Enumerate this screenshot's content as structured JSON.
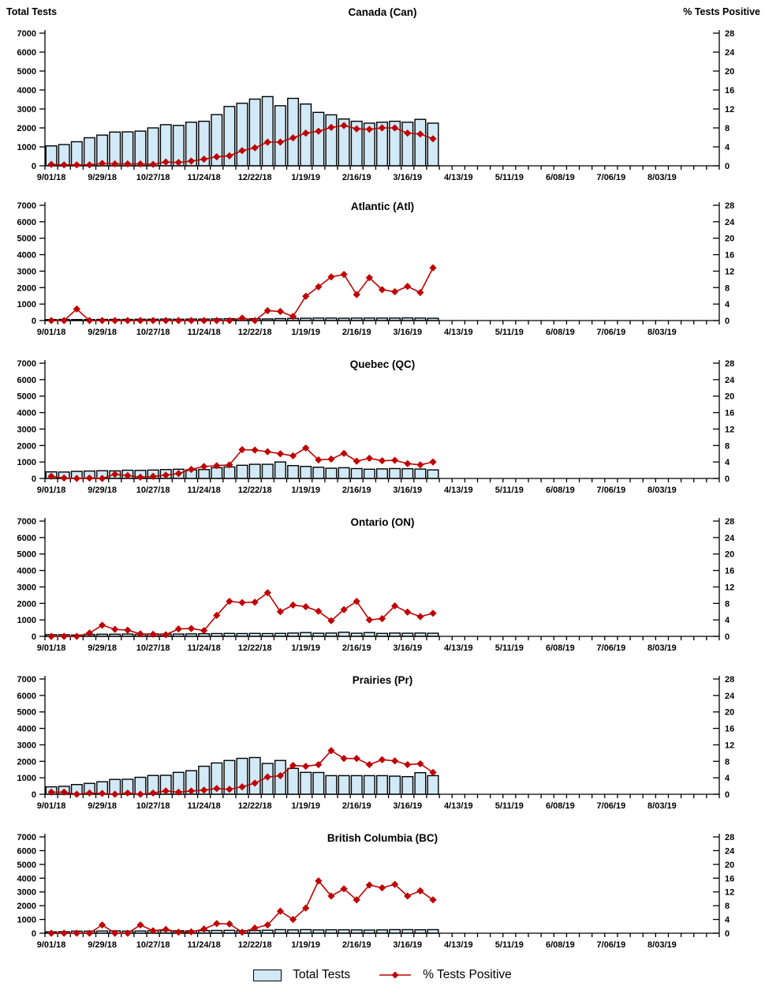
{
  "chart_data": {
    "type": "bar",
    "subtype": "combo-bar-line-small-multiples",
    "left_axis": {
      "label": "Total Tests",
      "min": 0,
      "max": 7000,
      "tick_step": 1000
    },
    "right_axis": {
      "label": "% Tests Positive",
      "min": 0,
      "max": 28,
      "tick_step": 4
    },
    "x_tick_labels": [
      "9/01/18",
      "9/29/18",
      "10/27/18",
      "11/24/18",
      "12/22/18",
      "1/19/19",
      "2/16/19",
      "3/16/19",
      "4/13/19",
      "5/11/19",
      "6/08/19",
      "7/06/19",
      "8/03/19"
    ],
    "weeks_total_on_axis": 53,
    "label_every_n_weeks": 4,
    "week_dates_with_data": [
      "9/01/18",
      "9/08/18",
      "9/15/18",
      "9/22/18",
      "9/29/18",
      "10/06/18",
      "10/13/18",
      "10/20/18",
      "10/27/18",
      "11/03/18",
      "11/10/18",
      "11/17/18",
      "11/24/18",
      "12/01/18",
      "12/08/18",
      "12/15/18",
      "12/22/18",
      "12/29/18",
      "1/05/19",
      "1/12/19",
      "1/19/19",
      "1/26/19",
      "2/02/19",
      "2/09/19",
      "2/16/19",
      "2/23/19",
      "3/02/19",
      "3/09/19",
      "3/16/19",
      "3/23/19",
      "3/30/19"
    ],
    "colors": {
      "bar_fill": "#D2E9F7",
      "bar_border": "#000000",
      "line": "#C00000",
      "text": "#000000"
    },
    "legend": [
      {
        "label": "Total Tests",
        "marker": "bar-swatch"
      },
      {
        "label": "% Tests Positive",
        "marker": "line-diamond"
      }
    ],
    "panels": [
      {
        "title": "Canada (Can)",
        "total_tests": [
          1050,
          1120,
          1270,
          1480,
          1620,
          1780,
          1790,
          1830,
          2000,
          2170,
          2130,
          2300,
          2350,
          2700,
          3130,
          3300,
          3520,
          3650,
          3170,
          3560,
          3260,
          2820,
          2690,
          2470,
          2350,
          2250,
          2300,
          2350,
          2300,
          2450,
          2250
        ],
        "pct_positive": [
          0.3,
          0.2,
          0.2,
          0.2,
          0.5,
          0.4,
          0.4,
          0.4,
          0.3,
          0.8,
          0.7,
          1.0,
          1.4,
          1.9,
          2.1,
          3.2,
          3.8,
          5.0,
          5.0,
          5.9,
          6.9,
          7.3,
          8.1,
          8.5,
          7.8,
          7.7,
          8.0,
          8.0,
          6.9,
          6.7,
          5.7
        ]
      },
      {
        "title": "Atlantic (Atl)",
        "total_tests": [
          60,
          70,
          60,
          60,
          70,
          70,
          70,
          80,
          80,
          90,
          80,
          90,
          90,
          100,
          110,
          100,
          110,
          100,
          120,
          130,
          140,
          150,
          150,
          140,
          150,
          150,
          150,
          150,
          160,
          150,
          140
        ],
        "pct_positive": [
          0,
          0,
          2.8,
          0,
          0,
          0,
          0,
          0,
          0,
          0,
          0,
          0,
          0,
          0,
          0,
          0.6,
          0,
          2.4,
          2.2,
          1.0,
          5.9,
          8.2,
          10.6,
          11.2,
          6.3,
          10.4,
          7.5,
          7.0,
          8.3,
          6.8,
          12.8
        ]
      },
      {
        "title": "Quebec (QC)",
        "total_tests": [
          400,
          390,
          430,
          450,
          470,
          460,
          500,
          490,
          510,
          540,
          560,
          520,
          540,
          650,
          700,
          800,
          860,
          860,
          1000,
          780,
          730,
          680,
          620,
          650,
          600,
          560,
          580,
          600,
          590,
          570,
          520
        ],
        "pct_positive": [
          0.5,
          0.1,
          0,
          0.1,
          0,
          1.0,
          0.7,
          0.3,
          0.5,
          0.8,
          1.2,
          2.2,
          2.9,
          3.1,
          3.3,
          7.0,
          6.9,
          6.5,
          6.0,
          5.5,
          7.4,
          4.5,
          4.7,
          6.1,
          4.2,
          4.9,
          4.3,
          4.4,
          3.6,
          3.3,
          4.0
        ]
      },
      {
        "title": "Ontario (ON)",
        "total_tests": [
          100,
          100,
          80,
          110,
          130,
          130,
          140,
          120,
          150,
          140,
          140,
          150,
          160,
          170,
          180,
          170,
          180,
          170,
          180,
          200,
          230,
          190,
          200,
          250,
          190,
          230,
          180,
          200,
          190,
          200,
          190
        ],
        "pct_positive": [
          0,
          0,
          0,
          0.8,
          2.7,
          1.7,
          1.5,
          0.6,
          0.5,
          0.4,
          1.8,
          1.9,
          1.4,
          5.1,
          8.5,
          8.2,
          8.3,
          10.6,
          6.0,
          7.6,
          7.2,
          6.1,
          3.8,
          6.5,
          8.5,
          4.0,
          4.3,
          7.4,
          5.9,
          4.8,
          5.6
        ]
      },
      {
        "title": "Prairies (Pr)",
        "total_tests": [
          450,
          480,
          590,
          660,
          760,
          900,
          910,
          1030,
          1140,
          1150,
          1330,
          1430,
          1700,
          1900,
          2050,
          2180,
          2230,
          1870,
          2050,
          1570,
          1330,
          1320,
          1130,
          1130,
          1130,
          1130,
          1130,
          1100,
          1070,
          1310,
          1130
        ],
        "pct_positive": [
          0.5,
          0.5,
          0,
          0.3,
          0.2,
          0,
          0.3,
          0,
          0.3,
          0.8,
          0.5,
          0.8,
          1.0,
          1.4,
          1.2,
          1.8,
          2.7,
          4.2,
          4.5,
          7.0,
          6.8,
          7.2,
          10.6,
          8.7,
          8.7,
          7.2,
          8.4,
          8.1,
          7.2,
          7.4,
          5.3
        ]
      },
      {
        "title": "British Columbia (BC)",
        "total_tests": [
          100,
          110,
          150,
          150,
          160,
          170,
          150,
          160,
          180,
          190,
          180,
          170,
          190,
          200,
          210,
          180,
          200,
          220,
          260,
          240,
          260,
          240,
          250,
          250,
          240,
          230,
          240,
          260,
          260,
          250,
          260
        ],
        "pct_positive": [
          0,
          0,
          0,
          0,
          2.4,
          0,
          0,
          2.4,
          0.7,
          1.1,
          0.3,
          0.4,
          1.2,
          2.8,
          2.7,
          0.3,
          1.5,
          2.4,
          6.4,
          4.0,
          7.3,
          15.2,
          10.8,
          12.9,
          9.7,
          14.0,
          13.2,
          14.2,
          10.8,
          12.3,
          9.7
        ]
      }
    ]
  }
}
